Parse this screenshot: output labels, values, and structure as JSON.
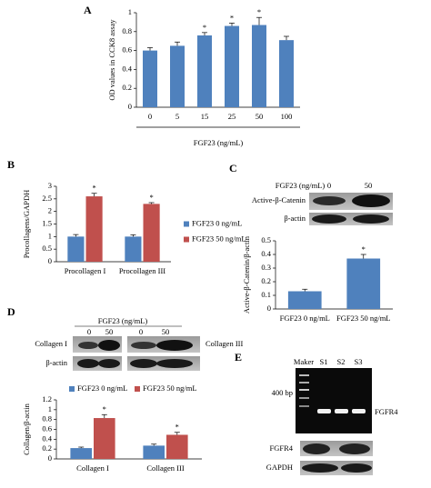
{
  "panel_labels": [
    "A",
    "B",
    "C",
    "D",
    "E"
  ],
  "chart_data": [
    {
      "type": "bar",
      "ylabel": "OD values in CCK8 assay",
      "xlabel": "FGF23 (ng/mL)",
      "categories": [
        "0",
        "5",
        "15",
        "25",
        "50",
        "100"
      ],
      "values": [
        0.6,
        0.65,
        0.76,
        0.86,
        0.87,
        0.71
      ],
      "errors": [
        0.03,
        0.04,
        0.03,
        0.03,
        0.08,
        0.04
      ],
      "color": "#4f81bd",
      "ylim": [
        0,
        1
      ],
      "yticks": [
        0,
        0.2,
        0.4,
        0.6,
        0.8,
        1
      ],
      "annotations": [
        {
          "text": "*",
          "category": "15"
        },
        {
          "text": "*",
          "category": "25"
        },
        {
          "text": "*",
          "category": "50"
        }
      ]
    },
    {
      "type": "bar",
      "ylabel": "Procollagens/GAPDH",
      "categories": [
        "Procollagen I",
        "Procollagen III"
      ],
      "series": [
        {
          "name": "FGF23 0 ng/mL",
          "color": "#4f81bd",
          "values": [
            1.0,
            1.0
          ],
          "errors": [
            0.08,
            0.07
          ]
        },
        {
          "name": "FGF23 50 ng/mL",
          "color": "#c0504d",
          "values": [
            2.6,
            2.3
          ],
          "errors": [
            0.12,
            0.05
          ]
        }
      ],
      "ylim": [
        0,
        3
      ],
      "yticks": [
        0,
        0.5,
        1,
        1.5,
        2,
        2.5,
        3
      ],
      "legend": "right",
      "annotations": [
        {
          "text": "*",
          "category": "Procollagen I",
          "series": "FGF23 50 ng/mL"
        },
        {
          "text": "*",
          "category": "Procollagen III",
          "series": "FGF23 50 ng/mL"
        }
      ]
    },
    {
      "type": "bar",
      "ylabel": "Active-β-Catenin/β-actin",
      "categories": [
        "FGF23 0 ng/mL",
        "FGF23 50 ng/mL"
      ],
      "values": [
        0.13,
        0.37
      ],
      "errors": [
        0.015,
        0.03
      ],
      "color": "#4f81bd",
      "ylim": [
        0,
        0.5
      ],
      "yticks": [
        0,
        0.1,
        0.2,
        0.3,
        0.4,
        0.5
      ],
      "annotations": [
        {
          "text": "*",
          "category": "FGF23 50 ng/mL"
        }
      ]
    },
    {
      "type": "bar",
      "ylabel": "Collagen/β-actin",
      "categories": [
        "Collagen I",
        "Collagen III"
      ],
      "series": [
        {
          "name": "FGF23 0 ng/mL",
          "color": "#4f81bd",
          "values": [
            0.22,
            0.27
          ],
          "errors": [
            0.02,
            0.03
          ]
        },
        {
          "name": "FGF23 50 ng/mL",
          "color": "#c0504d",
          "values": [
            0.83,
            0.49
          ],
          "errors": [
            0.07,
            0.05
          ]
        }
      ],
      "ylim": [
        0,
        1.2
      ],
      "yticks": [
        0,
        0.2,
        0.4,
        0.6,
        0.8,
        1,
        1.2
      ],
      "legend": "top",
      "annotations": [
        {
          "text": "*",
          "category": "Collagen I",
          "series": "FGF23 50 ng/mL"
        },
        {
          "text": "*",
          "category": "Collagen III",
          "series": "FGF23 50 ng/mL"
        }
      ]
    }
  ],
  "blots": {
    "C": {
      "header": "FGF23 (ng/mL)",
      "doses": [
        "0",
        "50"
      ],
      "rows": [
        "Active-β-Catenin",
        "β-actin"
      ]
    },
    "D": {
      "header": "FGF23 (ng/mL)",
      "doses": [
        "0",
        "50",
        "0",
        "50"
      ],
      "left_rows": [
        "Collagen I",
        "β-actin"
      ],
      "right_rows": [
        "Collagen III"
      ]
    },
    "E": {
      "lanes": [
        "Maker",
        "S1",
        "S2",
        "S3"
      ],
      "marker": "400 bp",
      "band": "FGFR4",
      "rows": [
        "FGFR4",
        "GAPDH"
      ]
    }
  }
}
